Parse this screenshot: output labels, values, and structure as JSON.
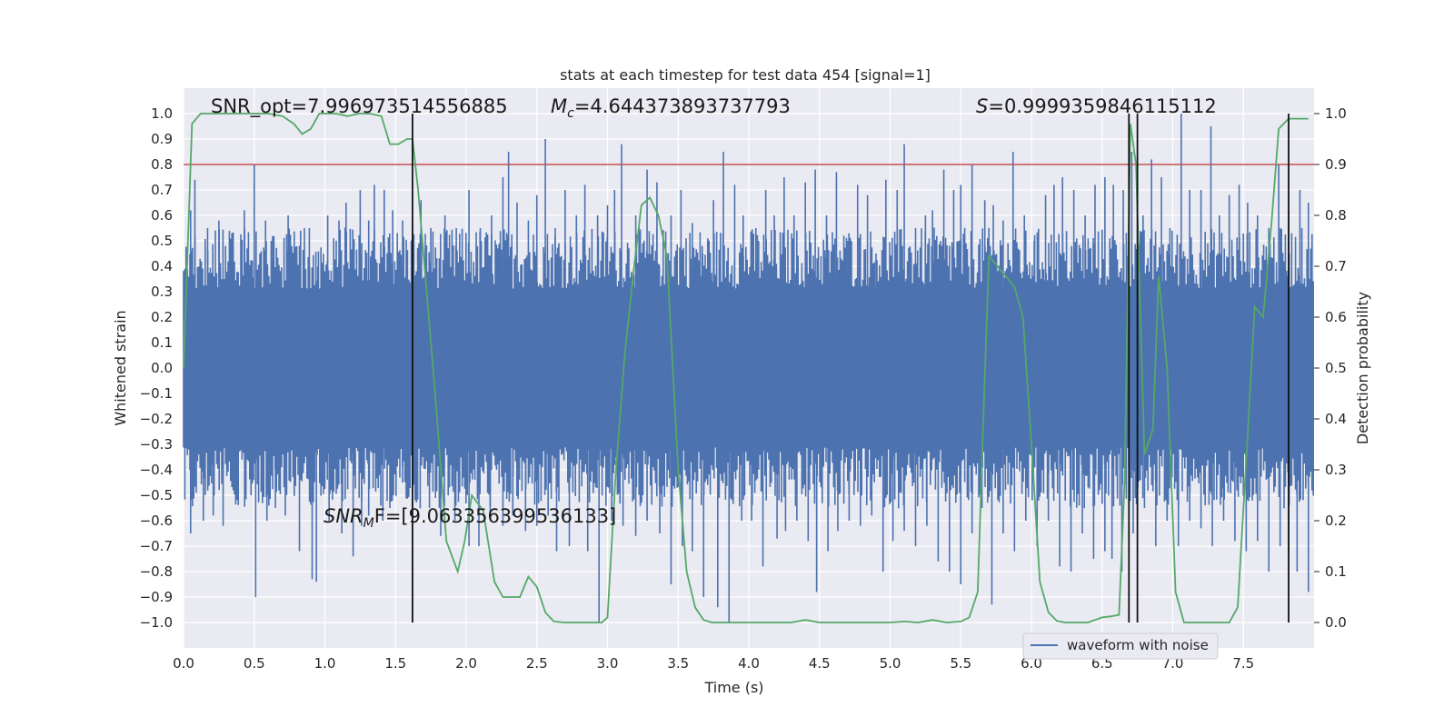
{
  "chart_data": {
    "type": "line",
    "title": "stats at each timestep for test data 454 [signal=1]",
    "xlabel": "Time (s)",
    "ylabel": "Whitened strain",
    "ylabel_right": "Detection probability",
    "xlim": [
      0,
      8
    ],
    "ylim": [
      -1.1,
      1.1
    ],
    "ylim_right": [
      -0.05,
      1.05
    ],
    "x_ticks": [
      0.0,
      0.5,
      1.0,
      1.5,
      2.0,
      2.5,
      3.0,
      3.5,
      4.0,
      4.5,
      5.0,
      5.5,
      6.0,
      6.5,
      7.0,
      7.5
    ],
    "x_tick_labels": [
      "0.0",
      "0.5",
      "1.0",
      "1.5",
      "2.0",
      "2.5",
      "3.0",
      "3.5",
      "4.0",
      "4.5",
      "5.0",
      "5.5",
      "6.0",
      "6.5",
      "7.0",
      "7.5"
    ],
    "y_ticks": [
      1.0,
      0.9,
      0.8,
      0.7,
      0.6,
      0.5,
      0.4,
      0.3,
      0.2,
      0.1,
      0.0,
      -0.1,
      -0.2,
      -0.3,
      -0.4,
      -0.5,
      -0.6,
      -0.7,
      -0.8,
      -0.9,
      -1.0
    ],
    "y_tick_labels": [
      "1.0",
      "0.9",
      "0.8",
      "0.7",
      "0.6",
      "0.5",
      "0.4",
      "0.3",
      "0.2",
      "0.1",
      "0.0",
      "−0.1",
      "−0.2",
      "−0.3",
      "−0.4",
      "−0.5",
      "−0.6",
      "−0.7",
      "−0.8",
      "−0.9",
      "−1.0"
    ],
    "y_right_ticks": [
      1.0,
      0.9,
      0.8,
      0.7,
      0.6,
      0.5,
      0.4,
      0.3,
      0.2,
      0.1,
      0.0
    ],
    "y_right_tick_labels": [
      "1.0",
      "0.9",
      "0.8",
      "0.7",
      "0.6",
      "0.5",
      "0.4",
      "0.3",
      "0.2",
      "0.1",
      "0.0"
    ],
    "waveform": {
      "name": "waveform with noise",
      "color": "#4c72b0",
      "dense_band": [
        -0.4,
        0.4
      ],
      "spikes_high": [
        [
          0.05,
          0.62
        ],
        [
          0.08,
          0.74
        ],
        [
          0.17,
          0.55
        ],
        [
          0.25,
          0.58
        ],
        [
          0.34,
          0.35
        ],
        [
          0.43,
          0.62
        ],
        [
          0.5,
          0.8
        ],
        [
          0.58,
          0.58
        ],
        [
          0.62,
          0.5
        ],
        [
          0.67,
          0.35
        ],
        [
          0.74,
          0.6
        ],
        [
          0.82,
          0.48
        ],
        [
          0.89,
          0.55
        ],
        [
          0.95,
          0.4
        ],
        [
          1.02,
          0.6
        ],
        [
          1.1,
          0.58
        ],
        [
          1.15,
          0.65
        ],
        [
          1.25,
          0.7
        ],
        [
          1.31,
          0.58
        ],
        [
          1.35,
          0.72
        ],
        [
          1.42,
          0.7
        ],
        [
          1.48,
          0.62
        ],
        [
          1.55,
          0.58
        ],
        [
          1.62,
          0.55
        ],
        [
          1.68,
          0.66
        ],
        [
          1.75,
          0.55
        ],
        [
          1.85,
          0.6
        ],
        [
          1.93,
          0.55
        ],
        [
          2.02,
          0.7
        ],
        [
          2.1,
          0.55
        ],
        [
          2.18,
          0.6
        ],
        [
          2.26,
          0.75
        ],
        [
          2.3,
          0.85
        ],
        [
          2.36,
          0.65
        ],
        [
          2.44,
          0.58
        ],
        [
          2.5,
          0.68
        ],
        [
          2.56,
          0.9
        ],
        [
          2.63,
          0.55
        ],
        [
          2.7,
          0.7
        ],
        [
          2.78,
          0.6
        ],
        [
          2.84,
          0.72
        ],
        [
          2.93,
          0.6
        ],
        [
          3.0,
          0.64
        ],
        [
          3.05,
          0.7
        ],
        [
          3.1,
          0.88
        ],
        [
          3.2,
          0.6
        ],
        [
          3.28,
          0.78
        ],
        [
          3.35,
          0.73
        ],
        [
          3.45,
          0.6
        ],
        [
          3.52,
          0.7
        ],
        [
          3.6,
          0.57
        ],
        [
          3.67,
          0.48
        ],
        [
          3.75,
          0.66
        ],
        [
          3.82,
          0.85
        ],
        [
          3.9,
          0.72
        ],
        [
          3.96,
          0.6
        ],
        [
          4.05,
          0.55
        ],
        [
          4.12,
          0.7
        ],
        [
          4.18,
          0.6
        ],
        [
          4.25,
          0.75
        ],
        [
          4.32,
          0.6
        ],
        [
          4.4,
          0.73
        ],
        [
          4.47,
          0.78
        ],
        [
          4.55,
          0.6
        ],
        [
          4.62,
          0.77
        ],
        [
          4.7,
          0.5
        ],
        [
          4.77,
          0.72
        ],
        [
          4.84,
          0.68
        ],
        [
          4.9,
          0.45
        ],
        [
          4.97,
          0.74
        ],
        [
          5.05,
          0.7
        ],
        [
          5.1,
          0.88
        ],
        [
          5.18,
          0.55
        ],
        [
          5.25,
          0.6
        ],
        [
          5.3,
          0.62
        ],
        [
          5.38,
          0.78
        ],
        [
          5.45,
          0.7
        ],
        [
          5.5,
          0.72
        ],
        [
          5.58,
          0.8
        ],
        [
          5.67,
          0.66
        ],
        [
          5.73,
          0.64
        ],
        [
          5.8,
          0.58
        ],
        [
          5.87,
          0.85
        ],
        [
          5.95,
          0.6
        ],
        [
          6.02,
          0.5
        ],
        [
          6.1,
          0.68
        ],
        [
          6.16,
          0.72
        ],
        [
          6.22,
          0.75
        ],
        [
          6.3,
          0.7
        ],
        [
          6.38,
          0.6
        ],
        [
          6.45,
          0.72
        ],
        [
          6.52,
          0.75
        ],
        [
          6.58,
          0.72
        ],
        [
          6.65,
          0.7
        ],
        [
          6.71,
          0.85
        ],
        [
          6.79,
          0.6
        ],
        [
          6.85,
          0.82
        ],
        [
          6.92,
          0.75
        ],
        [
          6.98,
          0.55
        ],
        [
          7.06,
          1.0
        ],
        [
          7.12,
          0.7
        ],
        [
          7.2,
          0.7
        ],
        [
          7.27,
          0.95
        ],
        [
          7.33,
          0.6
        ],
        [
          7.4,
          0.68
        ],
        [
          7.47,
          0.72
        ],
        [
          7.53,
          0.65
        ],
        [
          7.6,
          0.6
        ],
        [
          7.68,
          0.55
        ],
        [
          7.75,
          0.8
        ],
        [
          7.82,
          0.62
        ],
        [
          7.9,
          0.7
        ],
        [
          7.96,
          0.65
        ]
      ],
      "spikes_low": [
        [
          0.05,
          -0.65
        ],
        [
          0.14,
          -0.6
        ],
        [
          0.21,
          -0.58
        ],
        [
          0.28,
          -0.62
        ],
        [
          0.37,
          -0.52
        ],
        [
          0.44,
          -0.5
        ],
        [
          0.51,
          -0.9
        ],
        [
          0.59,
          -0.6
        ],
        [
          0.65,
          -0.55
        ],
        [
          0.72,
          -0.58
        ],
        [
          0.82,
          -0.72
        ],
        [
          0.91,
          -0.83
        ],
        [
          0.94,
          -0.84
        ],
        [
          1.03,
          -0.6
        ],
        [
          1.12,
          -0.65
        ],
        [
          1.2,
          -0.74
        ],
        [
          1.26,
          -0.62
        ],
        [
          1.31,
          -0.58
        ],
        [
          1.41,
          -0.6
        ],
        [
          1.46,
          -0.55
        ],
        [
          1.55,
          -0.45
        ],
        [
          1.65,
          -0.52
        ],
        [
          1.74,
          -0.55
        ],
        [
          1.82,
          -0.66
        ],
        [
          1.92,
          -0.6
        ],
        [
          2.02,
          -0.7
        ],
        [
          2.09,
          -0.7
        ],
        [
          2.17,
          -0.6
        ],
        [
          2.26,
          -0.62
        ],
        [
          2.33,
          -0.58
        ],
        [
          2.42,
          -0.64
        ],
        [
          2.5,
          -0.62
        ],
        [
          2.58,
          -0.58
        ],
        [
          2.64,
          -0.72
        ],
        [
          2.73,
          -0.7
        ],
        [
          2.86,
          -0.72
        ],
        [
          2.94,
          -1.0
        ],
        [
          3.03,
          -0.6
        ],
        [
          3.11,
          -0.62
        ],
        [
          3.2,
          -0.66
        ],
        [
          3.28,
          -0.6
        ],
        [
          3.37,
          -0.65
        ],
        [
          3.45,
          -0.85
        ],
        [
          3.53,
          -0.7
        ],
        [
          3.6,
          -0.72
        ],
        [
          3.68,
          -0.9
        ],
        [
          3.78,
          -0.94
        ],
        [
          3.86,
          -1.0
        ],
        [
          3.95,
          -0.6
        ],
        [
          4.02,
          -0.6
        ],
        [
          4.1,
          -0.78
        ],
        [
          4.2,
          -0.67
        ],
        [
          4.26,
          -0.64
        ],
        [
          4.34,
          -0.6
        ],
        [
          4.42,
          -0.68
        ],
        [
          4.48,
          -0.88
        ],
        [
          4.56,
          -0.72
        ],
        [
          4.63,
          -0.64
        ],
        [
          4.71,
          -0.6
        ],
        [
          4.79,
          -0.62
        ],
        [
          4.87,
          -0.58
        ],
        [
          4.95,
          -0.8
        ],
        [
          5.02,
          -0.68
        ],
        [
          5.1,
          -0.64
        ],
        [
          5.18,
          -0.7
        ],
        [
          5.26,
          -0.62
        ],
        [
          5.34,
          -0.76
        ],
        [
          5.42,
          -0.8
        ],
        [
          5.5,
          -0.85
        ],
        [
          5.58,
          -0.65
        ],
        [
          5.65,
          -0.55
        ],
        [
          5.72,
          -0.93
        ],
        [
          5.8,
          -0.65
        ],
        [
          5.88,
          -0.72
        ],
        [
          5.96,
          -0.6
        ],
        [
          6.04,
          -0.7
        ],
        [
          6.12,
          -0.6
        ],
        [
          6.2,
          -0.78
        ],
        [
          6.28,
          -0.8
        ],
        [
          6.36,
          -0.65
        ],
        [
          6.44,
          -0.75
        ],
        [
          6.52,
          -0.72
        ],
        [
          6.57,
          -0.75
        ],
        [
          6.64,
          -0.8
        ],
        [
          6.72,
          -0.65
        ],
        [
          6.8,
          -0.55
        ],
        [
          6.88,
          -0.7
        ],
        [
          6.96,
          -0.6
        ],
        [
          7.04,
          -0.7
        ],
        [
          7.12,
          -0.6
        ],
        [
          7.2,
          -0.63
        ],
        [
          7.28,
          -0.7
        ],
        [
          7.36,
          -0.6
        ],
        [
          7.44,
          -0.68
        ],
        [
          7.52,
          -0.72
        ],
        [
          7.6,
          -0.68
        ],
        [
          7.68,
          -0.8
        ],
        [
          7.76,
          -0.7
        ],
        [
          7.82,
          -0.72
        ],
        [
          7.88,
          -0.8
        ],
        [
          7.96,
          -0.88
        ]
      ]
    },
    "detection_probability": {
      "color": "#55a868",
      "x": [
        0.0,
        0.06,
        0.12,
        0.2,
        0.3,
        0.4,
        0.5,
        0.6,
        0.7,
        0.78,
        0.84,
        0.9,
        0.96,
        1.0,
        1.08,
        1.16,
        1.24,
        1.32,
        1.4,
        1.46,
        1.52,
        1.58,
        1.62,
        1.66,
        1.72,
        1.78,
        1.86,
        1.94,
        1.99,
        2.04,
        2.12,
        2.2,
        2.26,
        2.32,
        2.38,
        2.44,
        2.5,
        2.56,
        2.62,
        2.7,
        2.8,
        2.9,
        2.96,
        3.0,
        3.06,
        3.12,
        3.18,
        3.24,
        3.3,
        3.36,
        3.42,
        3.5,
        3.56,
        3.62,
        3.68,
        3.74,
        3.8,
        3.9,
        4.0,
        4.1,
        4.2,
        4.3,
        4.4,
        4.5,
        4.6,
        4.7,
        4.8,
        4.9,
        5.0,
        5.1,
        5.2,
        5.3,
        5.4,
        5.5,
        5.56,
        5.62,
        5.66,
        5.7,
        5.76,
        5.82,
        5.88,
        5.94,
        6.0,
        6.06,
        6.12,
        6.18,
        6.24,
        6.3,
        6.4,
        6.5,
        6.56,
        6.62,
        6.66,
        6.7,
        6.74,
        6.8,
        6.86,
        6.9,
        6.96,
        7.02,
        7.08,
        7.14,
        7.2,
        7.3,
        7.4,
        7.46,
        7.52,
        7.58,
        7.64,
        7.7,
        7.75,
        7.82,
        7.88,
        7.96
      ],
      "values": [
        0.5,
        0.98,
        1.0,
        1.0,
        1.0,
        1.0,
        1.0,
        1.0,
        0.995,
        0.98,
        0.96,
        0.97,
        1.0,
        1.0,
        1.0,
        0.995,
        1.0,
        1.0,
        0.995,
        0.94,
        0.94,
        0.95,
        0.95,
        0.85,
        0.65,
        0.45,
        0.16,
        0.1,
        0.16,
        0.25,
        0.22,
        0.08,
        0.05,
        0.05,
        0.05,
        0.09,
        0.07,
        0.02,
        0.002,
        0.0,
        0.0,
        0.0,
        0.0,
        0.01,
        0.3,
        0.52,
        0.68,
        0.82,
        0.835,
        0.8,
        0.72,
        0.3,
        0.1,
        0.03,
        0.005,
        0.0,
        0.0,
        0.0,
        0.0,
        0.0,
        0.0,
        0.0,
        0.005,
        0.0,
        0.0,
        0.0,
        0.0,
        0.0,
        0.0,
        0.002,
        0.0,
        0.005,
        0.0,
        0.002,
        0.01,
        0.06,
        0.4,
        0.72,
        0.7,
        0.68,
        0.66,
        0.6,
        0.35,
        0.08,
        0.02,
        0.003,
        0.0,
        0.0,
        0.0,
        0.01,
        0.012,
        0.015,
        0.28,
        0.98,
        0.9,
        0.33,
        0.38,
        0.68,
        0.5,
        0.06,
        0.0,
        0.0,
        0.0,
        0.0,
        0.0,
        0.03,
        0.32,
        0.62,
        0.6,
        0.79,
        0.97,
        0.99,
        0.99,
        0.99
      ]
    },
    "threshold": {
      "y": 0.9,
      "color": "#c44e52"
    },
    "vlines": [
      1.62,
      6.69,
      6.75,
      7.82
    ],
    "annotations": {
      "snr_opt": "SNR_opt=7.996973514556885",
      "mc_symbol": "M",
      "mc_sub": "c",
      "mc_value": "=4.644373893737793",
      "s_symbol": "S",
      "s_value": "=0.9999359846115112",
      "snrmf_symbol": "SNR",
      "snrmf_sub": "M",
      "snrmf_value": "F=[9.063356399536133]"
    },
    "legend": {
      "label": "waveform with noise",
      "placement": "lower-right"
    }
  }
}
